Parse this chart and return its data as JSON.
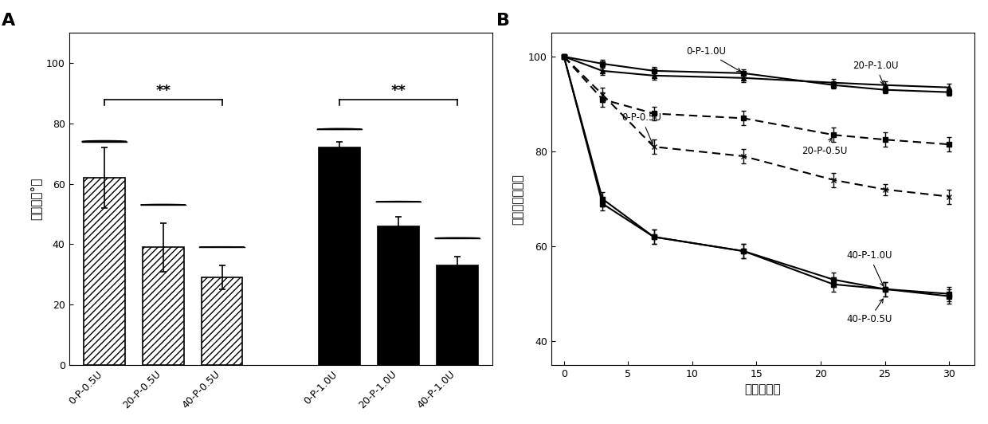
{
  "bar_labels": [
    "0-P-0.5U",
    "20-P-0.5U",
    "40-P-0.5U",
    "0-P-1.0U",
    "20-P-1.0U",
    "40-P-1.0U"
  ],
  "bar_values": [
    62,
    39,
    29,
    72,
    46,
    33
  ],
  "bar_errors": [
    10,
    8,
    4,
    2,
    3,
    3
  ],
  "droplet_angles": [
    74,
    53,
    39,
    78,
    54,
    42
  ],
  "bar_ylabel": "接触角（°）",
  "bar_ylim": [
    0,
    110
  ],
  "bar_yticks": [
    0,
    20,
    40,
    60,
    80,
    100
  ],
  "line_times": [
    0,
    3,
    7,
    14,
    21,
    25,
    30
  ],
  "line_ylabel": "保留质量（％）",
  "line_xlabel": "时间（天）",
  "line_ylim": [
    35,
    105
  ],
  "line_yticks": [
    40,
    60,
    80,
    100
  ],
  "line_data": {
    "0-P-1.0U": {
      "values": [
        100,
        98.5,
        97,
        96.5,
        94,
        93,
        92.5
      ],
      "errors": [
        0,
        0.8,
        0.8,
        0.8,
        0.8,
        0.8,
        0.8
      ],
      "linestyle": "solid",
      "marker": "s"
    },
    "20-P-1.0U": {
      "values": [
        100,
        97,
        96,
        95.5,
        94.5,
        94,
        93.5
      ],
      "errors": [
        0,
        0.8,
        0.8,
        0.8,
        0.8,
        0.8,
        0.8
      ],
      "linestyle": "solid",
      "marker": "^"
    },
    "0-P-0.5U": {
      "values": [
        100,
        92,
        81,
        79,
        74,
        72,
        70.5
      ],
      "errors": [
        0,
        1.5,
        1.5,
        1.5,
        1.5,
        1.2,
        1.5
      ],
      "linestyle": "dashed",
      "marker": "x"
    },
    "20-P-0.5U": {
      "values": [
        100,
        91,
        88,
        87,
        83.5,
        82.5,
        81.5
      ],
      "errors": [
        0,
        1.5,
        1.5,
        1.5,
        1.5,
        1.5,
        1.5
      ],
      "linestyle": "dashed",
      "marker": "s"
    },
    "40-P-1.0U": {
      "values": [
        100,
        70,
        62,
        59,
        52,
        51,
        50
      ],
      "errors": [
        0,
        1.5,
        1.5,
        1.5,
        1.5,
        1.5,
        1.5
      ],
      "linestyle": "solid",
      "marker": "s"
    },
    "40-P-0.5U": {
      "values": [
        100,
        69,
        62,
        59,
        53,
        51,
        49.5
      ],
      "errors": [
        0,
        1.5,
        1.5,
        1.5,
        1.5,
        1.5,
        1.5
      ],
      "linestyle": "solid",
      "marker": "s"
    }
  }
}
